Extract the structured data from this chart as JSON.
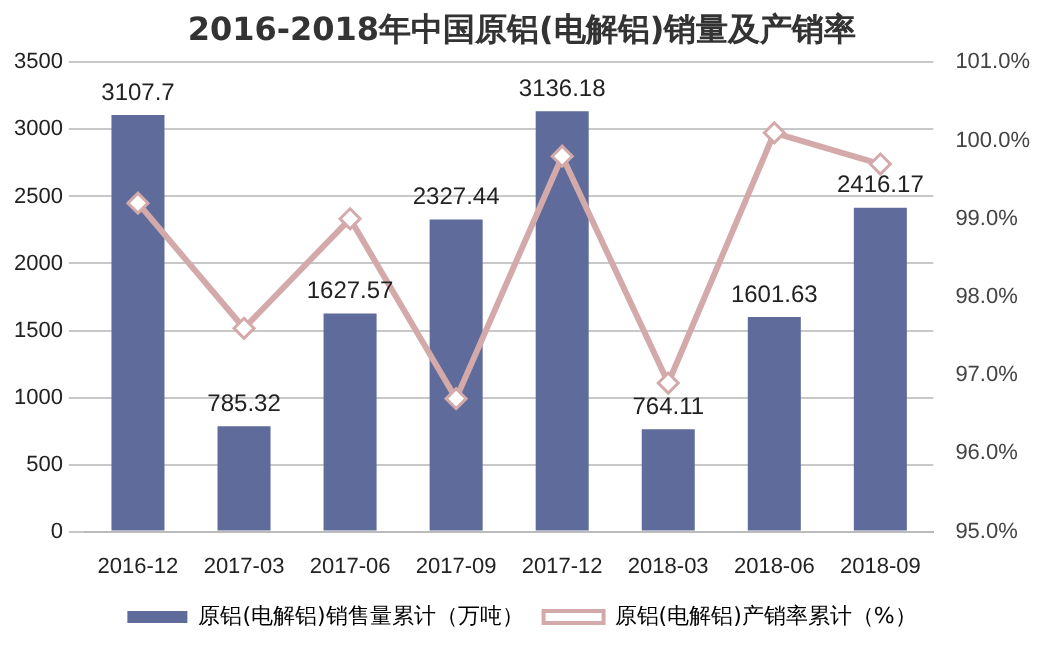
{
  "chart_data": {
    "type": "bar",
    "title": "2016-2018年中国原铝(电解铝)销量及产销率",
    "categories": [
      "2016-12",
      "2017-03",
      "2017-06",
      "2017-09",
      "2017-12",
      "2018-03",
      "2018-06",
      "2018-09"
    ],
    "series": [
      {
        "name": "原铝(电解铝)销售量累计（万吨）",
        "color": "#5f6b9a",
        "values": [
          3107.7,
          785.32,
          1627.57,
          2327.44,
          3136.18,
          764.11,
          1601.63,
          2416.17
        ],
        "value_labels": [
          "3107.7",
          "785.32",
          "1627.57",
          "2327.44",
          "3136.18",
          "764.11",
          "1601.63",
          "2416.17"
        ]
      },
      {
        "name": "原铝(电解铝)产销率累计（%）",
        "type": "line",
        "axis": "y2",
        "color": "#d4a9aa",
        "marker": "diamond",
        "values": [
          99.2,
          97.6,
          99.0,
          96.7,
          99.8,
          96.9,
          100.1,
          99.7
        ]
      }
    ],
    "ylim": [
      0,
      3500
    ],
    "yticks": [
      0,
      500,
      1000,
      1500,
      2000,
      2500,
      3000,
      3500
    ],
    "y2lim": [
      95,
      101
    ],
    "y2ticks": [
      {
        "value": 95,
        "label": "95.0%"
      },
      {
        "value": 96,
        "label": "96.0%"
      },
      {
        "value": 97,
        "label": "97.0%"
      },
      {
        "value": 98,
        "label": "98.0%"
      },
      {
        "value": 99,
        "label": "99.0%"
      },
      {
        "value": 100,
        "label": "100.0%"
      },
      {
        "value": 101,
        "label": "101.0%"
      }
    ],
    "grid": "y",
    "legend": "bottom"
  }
}
